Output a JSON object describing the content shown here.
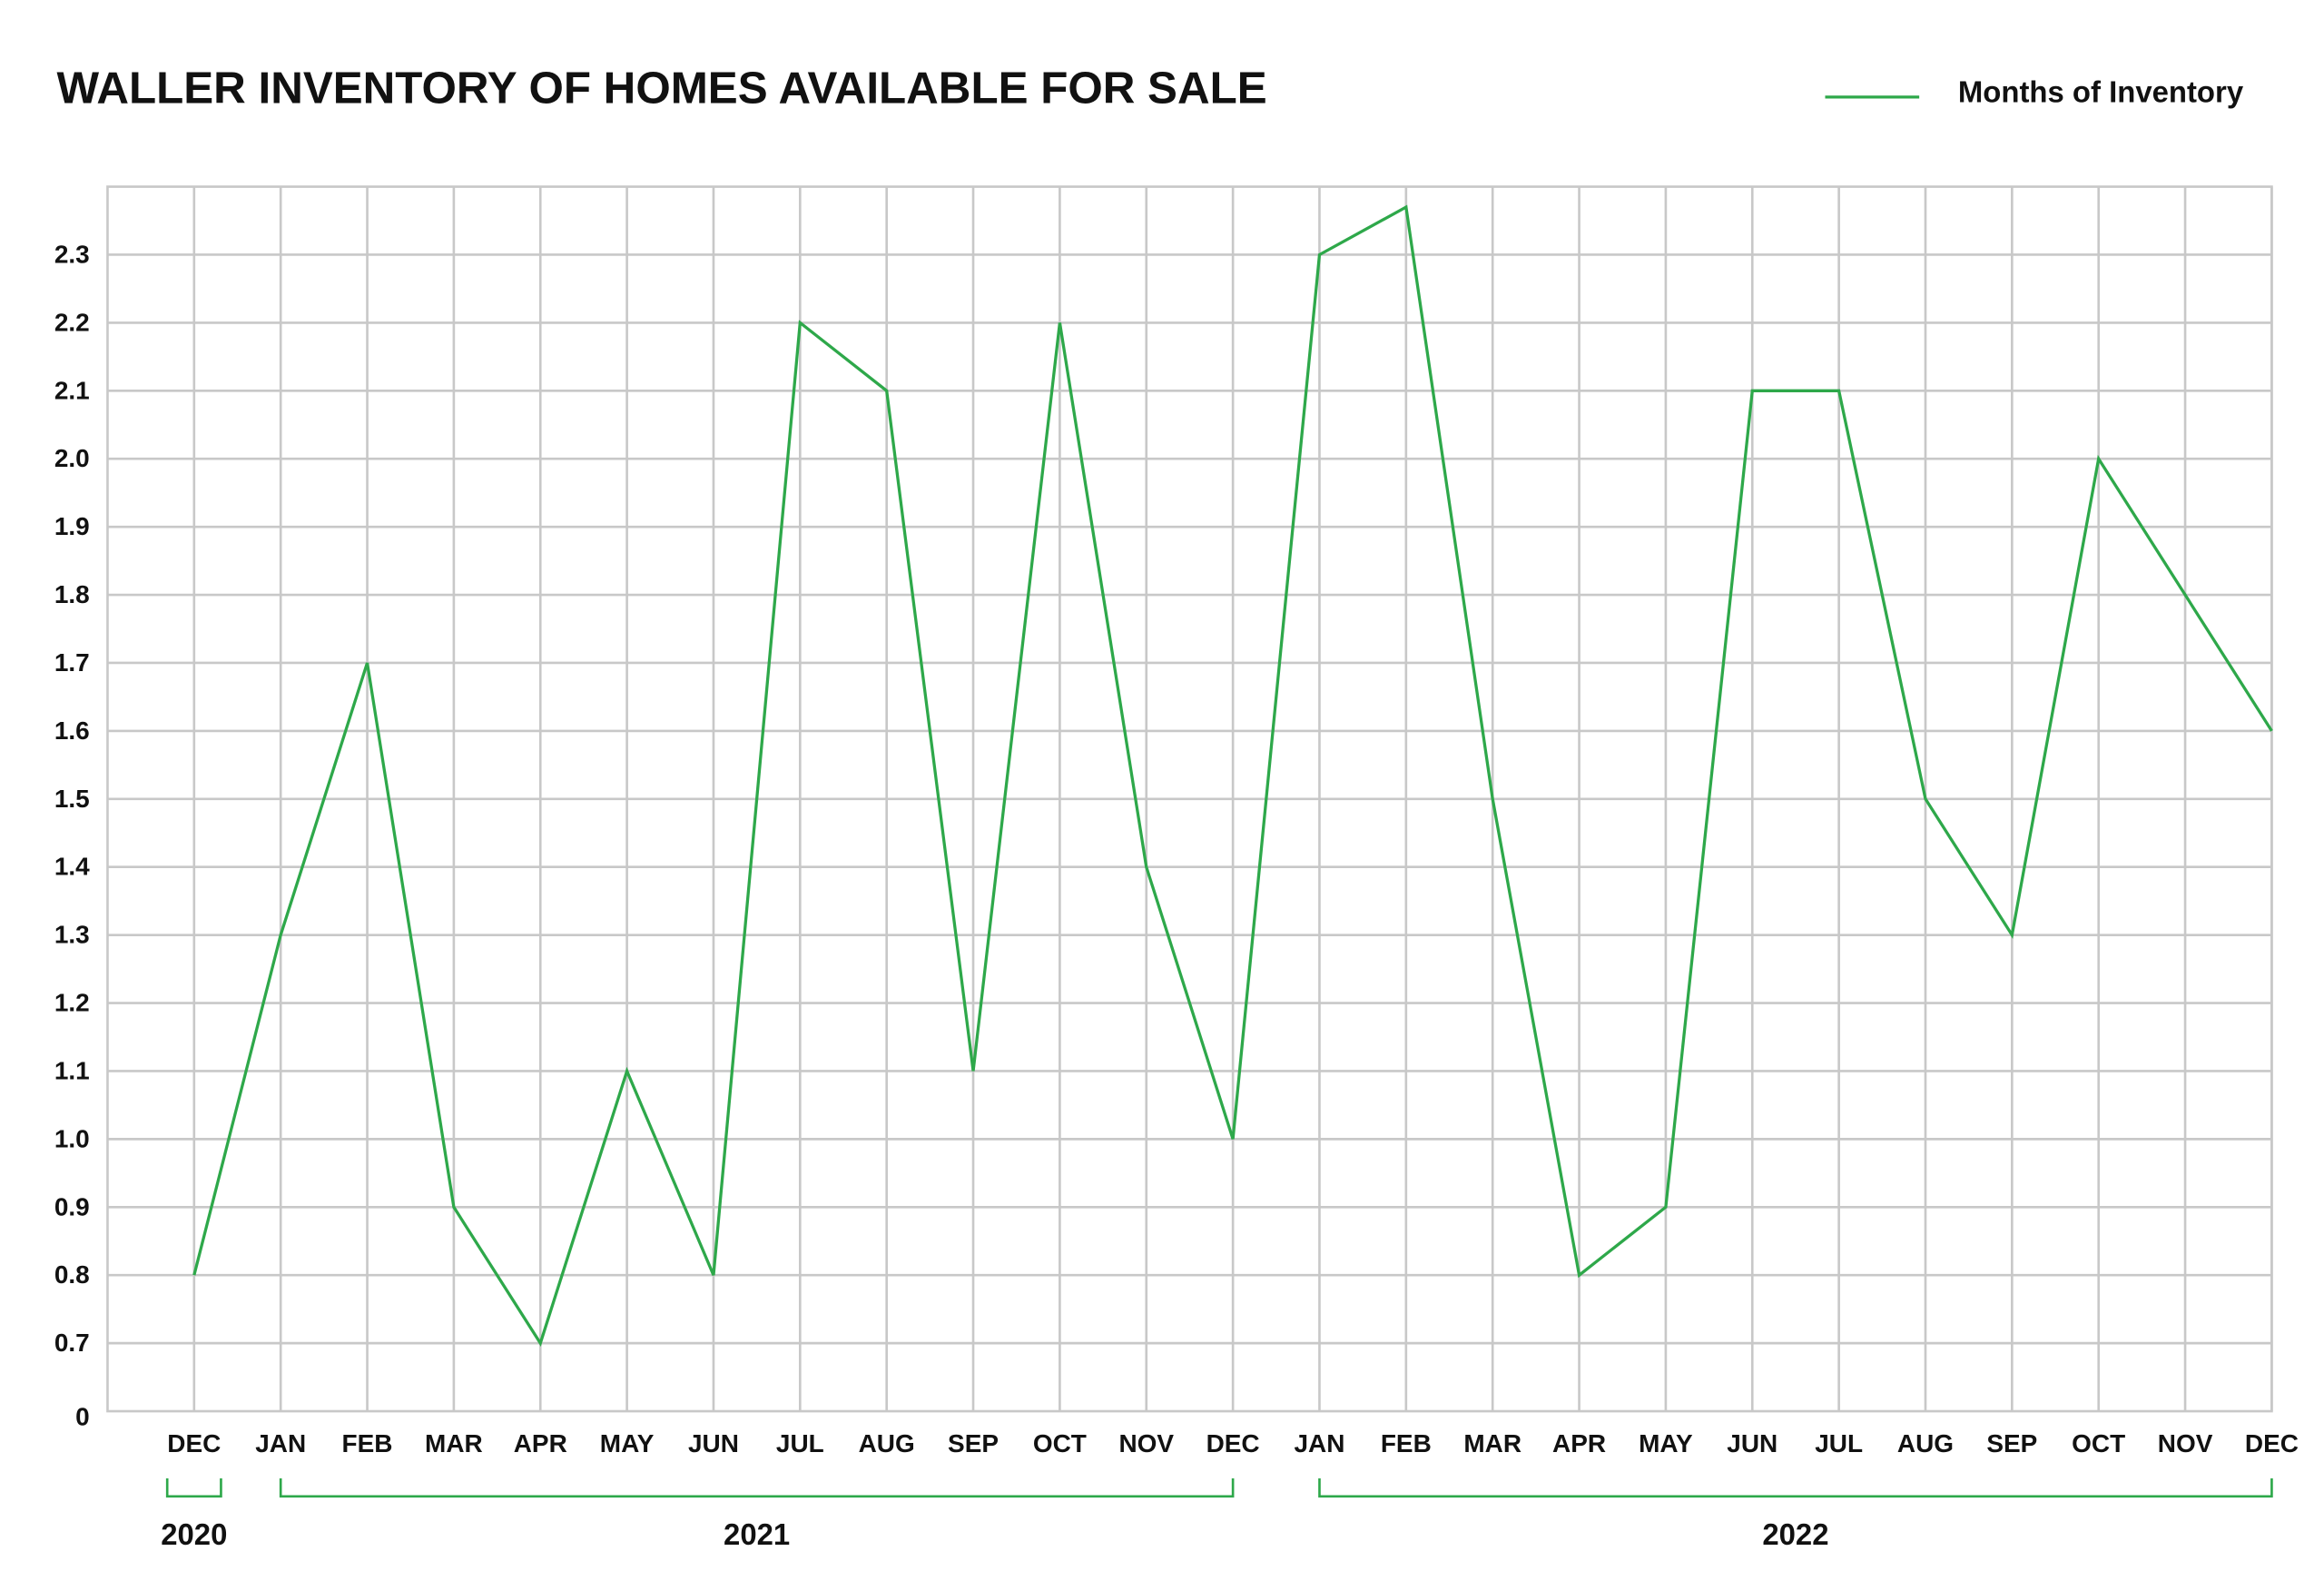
{
  "chart_data": {
    "type": "line",
    "title": "WALLER INVENTORY OF HOMES AVAILABLE FOR SALE",
    "categories": [
      "DEC",
      "JAN",
      "FEB",
      "MAR",
      "APR",
      "MAY",
      "JUN",
      "JUL",
      "AUG",
      "SEP",
      "OCT",
      "NOV",
      "DEC",
      "JAN",
      "FEB",
      "MAR",
      "APR",
      "MAY",
      "JUN",
      "JUL",
      "AUG",
      "SEP",
      "OCT",
      "NOV",
      "DEC"
    ],
    "series": [
      {
        "name": "Months of Inventory",
        "color": "#2ea84a",
        "values": [
          0.8,
          1.3,
          1.7,
          0.9,
          0.7,
          1.1,
          0.8,
          2.2,
          2.1,
          1.1,
          2.2,
          1.4,
          1.0,
          2.3,
          2.37,
          1.5,
          0.8,
          0.9,
          2.1,
          2.1,
          1.5,
          1.3,
          2.0,
          1.8,
          1.6
        ]
      }
    ],
    "year_groups": [
      {
        "label": "2020",
        "count": 1
      },
      {
        "label": "2021",
        "count": 12
      },
      {
        "label": "2022",
        "count": 12
      }
    ],
    "ylim": [
      0.6,
      2.4
    ],
    "yticks": [
      0.7,
      0.8,
      0.9,
      {
        "value": 1.0,
        "label": "1.0"
      },
      1.1,
      1.2,
      1.3,
      1.4,
      1.5,
      1.6,
      1.7,
      1.8,
      1.9,
      {
        "value": 2.0,
        "label": "2.0"
      },
      2.1,
      2.2,
      2.3
    ],
    "y_break_label": "0",
    "grid": true,
    "legend": "top-right"
  }
}
